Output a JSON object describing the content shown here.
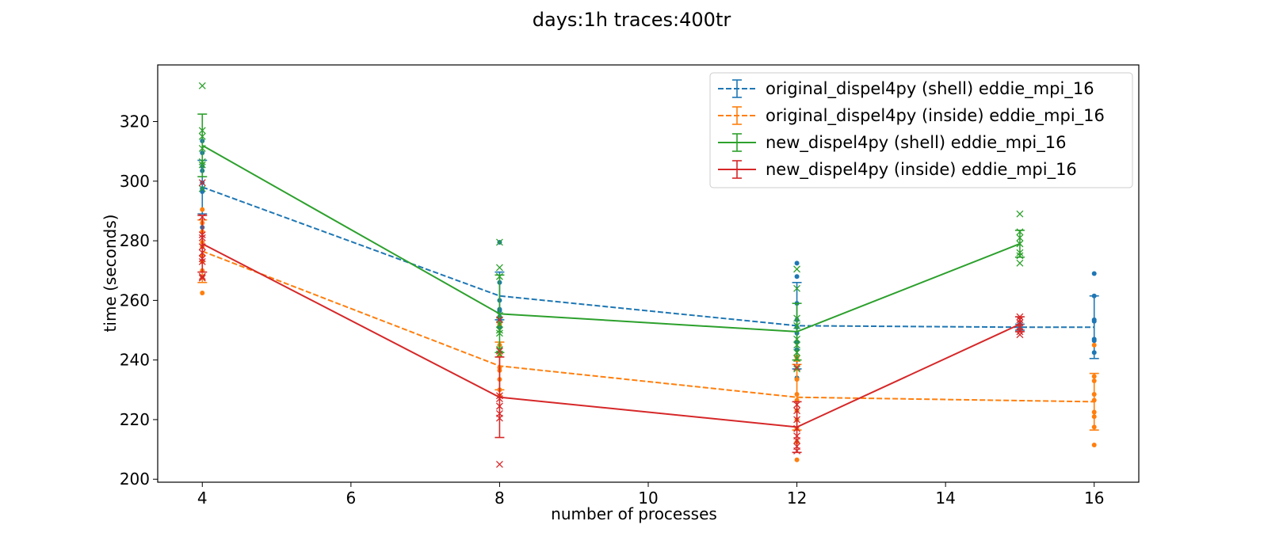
{
  "chart_data": {
    "type": "line",
    "title": "days:1h traces:400tr",
    "xlabel": "number of processes",
    "ylabel": "time (seconds)",
    "xlim": [
      3.4,
      16.6
    ],
    "ylim": [
      199,
      339
    ],
    "xticks": [
      4,
      6,
      8,
      10,
      12,
      14,
      16
    ],
    "yticks": [
      200,
      220,
      240,
      260,
      280,
      300,
      320
    ],
    "grid": false,
    "legend_position": "top-right",
    "series": [
      {
        "name": "original_dispel4py (shell) eddie_mpi_16",
        "color": "#1f77b4",
        "line_style": "dashed",
        "marker": "dot",
        "x": [
          4,
          8,
          12,
          15,
          16
        ],
        "mean": [
          298,
          261.5,
          251.5,
          251,
          251
        ],
        "err": [
          9,
          8,
          14.5,
          1,
          10.5
        ],
        "samples": [
          [
            296.5,
            299.5,
            303.5,
            309.5,
            313.5,
            284.5,
            297.5,
            305
          ],
          [
            279.5,
            266,
            260,
            257,
            254.5,
            253.5,
            251,
            256.5
          ],
          [
            272.5,
            268,
            259,
            253.5,
            251,
            249,
            246,
            243.5,
            241,
            234
          ],
          [
            252,
            251,
            250.5
          ],
          [
            269,
            261.5,
            253.5,
            253,
            247,
            246.5,
            242.5
          ]
        ]
      },
      {
        "name": "original_dispel4py (inside) eddie_mpi_16",
        "color": "#ff7f0e",
        "line_style": "dashed",
        "marker": "dot",
        "x": [
          4,
          8,
          12,
          16
        ],
        "mean": [
          276.5,
          238,
          227.5,
          226
        ],
        "err": [
          10.5,
          8,
          11,
          9.5
        ],
        "samples": [
          [
            290.5,
            286,
            283,
            279.5,
            278,
            275,
            273,
            270,
            268,
            262.5
          ],
          [
            252,
            245,
            241.5,
            237.5,
            236.5,
            233.5,
            230,
            228
          ],
          [
            241,
            240,
            233.5,
            228.5,
            226.5,
            223,
            220,
            217,
            212.5,
            206.5
          ],
          [
            245,
            234.5,
            233,
            228.5,
            226.5,
            222.5,
            221,
            217.5,
            211.5
          ]
        ]
      },
      {
        "name": "new_dispel4py (shell) eddie_mpi_16",
        "color": "#2ca02c",
        "line_style": "solid",
        "marker": "x",
        "x": [
          4,
          8,
          12,
          15
        ],
        "mean": [
          312,
          255.5,
          249.5,
          279
        ],
        "err": [
          10.5,
          13,
          9.5,
          4.5
        ],
        "samples": [
          [
            332,
            317,
            315,
            311,
            306.5,
            305.5,
            297.5
          ],
          [
            279.5,
            271,
            268,
            255,
            252,
            250,
            249,
            243.5,
            242
          ],
          [
            270.5,
            264,
            254,
            251.5,
            247,
            245,
            242.5,
            240.5,
            237
          ],
          [
            289,
            283,
            281,
            279,
            276,
            275,
            272.5
          ]
        ]
      },
      {
        "name": "new_dispel4py (inside) eddie_mpi_16",
        "color": "#d62728",
        "line_style": "solid",
        "marker": "x",
        "x": [
          4,
          8,
          12,
          15
        ],
        "mean": [
          279,
          227.5,
          217.5,
          252
        ],
        "err": [
          9.5,
          13.5,
          8.5,
          2.5
        ],
        "samples": [
          [
            299.5,
            288,
            282,
            281,
            278,
            276,
            274,
            273,
            268,
            267.5
          ],
          [
            253.5,
            243,
            228,
            227,
            224.5,
            222,
            220.5,
            205
          ],
          [
            237.5,
            225,
            223,
            220,
            217,
            214.5,
            213,
            211,
            209.5
          ],
          [
            254.5,
            253.5,
            252.5,
            251,
            249.5,
            248.5
          ]
        ]
      }
    ]
  }
}
